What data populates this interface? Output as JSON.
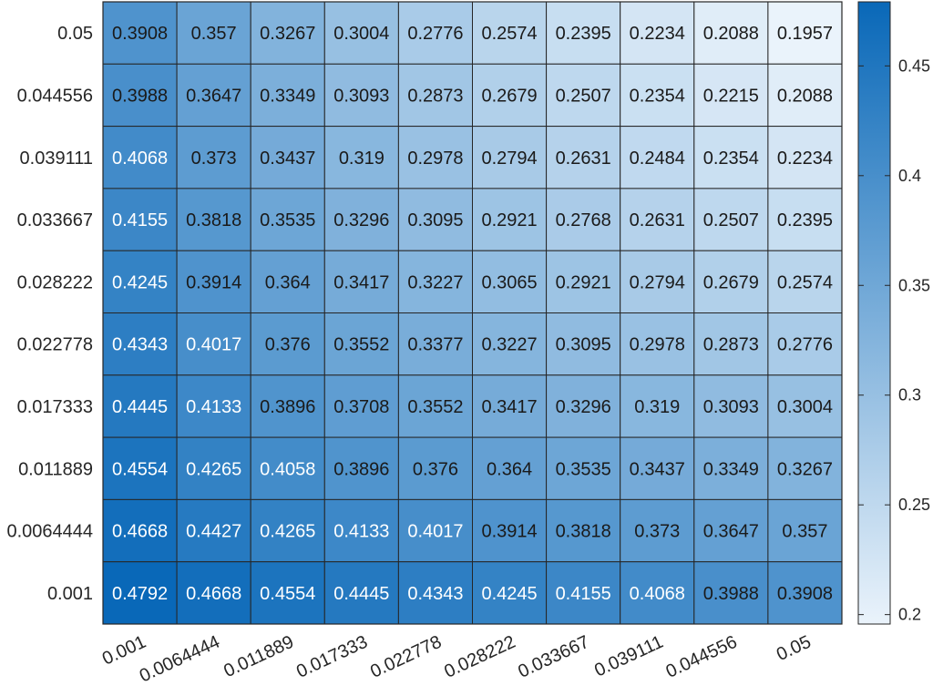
{
  "chart_data": {
    "type": "heatmap",
    "title": "",
    "xlabel": "",
    "ylabel": "",
    "x_categories": [
      "0.001",
      "0.0064444",
      "0.011889",
      "0.017333",
      "0.022778",
      "0.028222",
      "0.033667",
      "0.039111",
      "0.044556",
      "0.05"
    ],
    "y_categories": [
      "0.05",
      "0.044556",
      "0.039111",
      "0.033667",
      "0.028222",
      "0.022778",
      "0.017333",
      "0.011889",
      "0.0064444",
      "0.001"
    ],
    "values": [
      [
        "0.3908",
        "0.357",
        "0.3267",
        "0.3004",
        "0.2776",
        "0.2574",
        "0.2395",
        "0.2234",
        "0.2088",
        "0.1957"
      ],
      [
        "0.3988",
        "0.3647",
        "0.3349",
        "0.3093",
        "0.2873",
        "0.2679",
        "0.2507",
        "0.2354",
        "0.2215",
        "0.2088"
      ],
      [
        "0.4068",
        "0.373",
        "0.3437",
        "0.319",
        "0.2978",
        "0.2794",
        "0.2631",
        "0.2484",
        "0.2354",
        "0.2234"
      ],
      [
        "0.4155",
        "0.3818",
        "0.3535",
        "0.3296",
        "0.3095",
        "0.2921",
        "0.2768",
        "0.2631",
        "0.2507",
        "0.2395"
      ],
      [
        "0.4245",
        "0.3914",
        "0.364",
        "0.3417",
        "0.3227",
        "0.3065",
        "0.2921",
        "0.2794",
        "0.2679",
        "0.2574"
      ],
      [
        "0.4343",
        "0.4017",
        "0.376",
        "0.3552",
        "0.3377",
        "0.3227",
        "0.3095",
        "0.2978",
        "0.2873",
        "0.2776"
      ],
      [
        "0.4445",
        "0.4133",
        "0.3896",
        "0.3708",
        "0.3552",
        "0.3417",
        "0.3296",
        "0.319",
        "0.3093",
        "0.3004"
      ],
      [
        "0.4554",
        "0.4265",
        "0.4058",
        "0.3896",
        "0.376",
        "0.364",
        "0.3535",
        "0.3437",
        "0.3349",
        "0.3267"
      ],
      [
        "0.4668",
        "0.4427",
        "0.4265",
        "0.4133",
        "0.4017",
        "0.3914",
        "0.3818",
        "0.373",
        "0.3647",
        "0.357"
      ],
      [
        "0.4792",
        "0.4668",
        "0.4554",
        "0.4445",
        "0.4343",
        "0.4245",
        "0.4155",
        "0.4068",
        "0.3988",
        "0.3908"
      ]
    ],
    "colorbar": {
      "range": [
        0.1957,
        0.4792
      ],
      "ticks": [
        "0.2",
        "0.25",
        "0.3",
        "0.35",
        "0.4",
        "0.45"
      ],
      "color_low": "#eaf3fb",
      "color_high": "#0968b8"
    },
    "text_color_light": "#ffffff",
    "text_color_dark": "#1a1a1a",
    "grid": true,
    "legend": "none"
  }
}
